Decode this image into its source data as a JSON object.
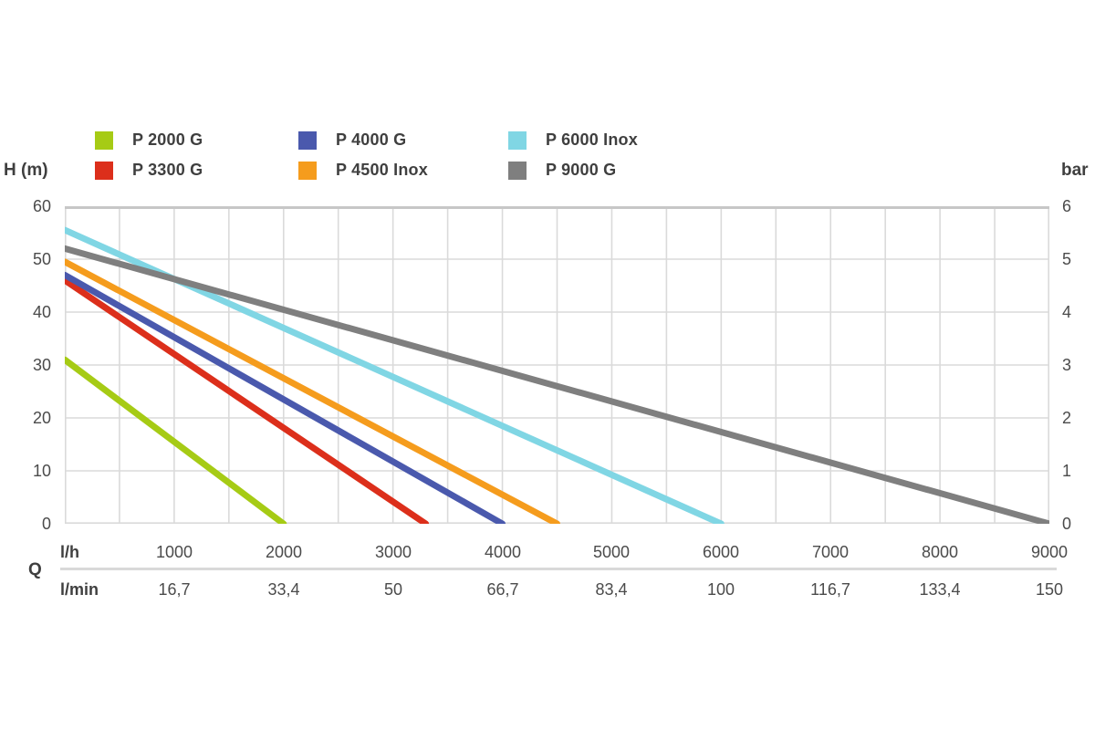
{
  "chart_data": {
    "type": "line",
    "title": "",
    "grid": true,
    "legend_position": "top",
    "x_axis": {
      "label": "Q",
      "unit_primary": "l/h",
      "unit_secondary": "l/min",
      "min": 0,
      "max": 9000,
      "grid_step": 500,
      "ticks_lh": [
        "1000",
        "2000",
        "3000",
        "4000",
        "5000",
        "6000",
        "7000",
        "8000",
        "9000"
      ],
      "ticks_lmin": [
        "16,7",
        "33,4",
        "50",
        "66,7",
        "83,4",
        "100",
        "116,7",
        "133,4",
        "150"
      ]
    },
    "y_axis_left": {
      "label": "H (m)",
      "min": 0,
      "max": 60,
      "grid_step": 10,
      "ticks": [
        "60",
        "50",
        "40",
        "30",
        "20",
        "10",
        "0"
      ]
    },
    "y_axis_right": {
      "label": "bar",
      "min": 0,
      "max": 6,
      "ticks": [
        "6",
        "5",
        "4",
        "3",
        "2",
        "1",
        "0"
      ]
    },
    "series": [
      {
        "name": "P 2000 G",
        "color": "#a6cb15",
        "points": [
          [
            0,
            31.0
          ],
          [
            2000,
            0
          ]
        ]
      },
      {
        "name": "P 3300 G",
        "color": "#dc2f1b",
        "points": [
          [
            0,
            46.0
          ],
          [
            3300,
            0
          ]
        ]
      },
      {
        "name": "P 4000 G",
        "color": "#4a59ad",
        "points": [
          [
            0,
            47.0
          ],
          [
            4000,
            0
          ]
        ]
      },
      {
        "name": "P 4500 Inox",
        "color": "#f59c1d",
        "points": [
          [
            0,
            49.5
          ],
          [
            4500,
            0
          ]
        ]
      },
      {
        "name": "P 6000 Inox",
        "color": "#80d6e4",
        "points": [
          [
            0,
            55.5
          ],
          [
            6000,
            0
          ]
        ]
      },
      {
        "name": "P 9000 G",
        "color": "#7f7f7f",
        "points": [
          [
            0,
            52.0
          ],
          [
            9000,
            0
          ]
        ]
      }
    ],
    "grid_color": "#dadada",
    "plot_top_border_color": "#c7c7c7"
  }
}
